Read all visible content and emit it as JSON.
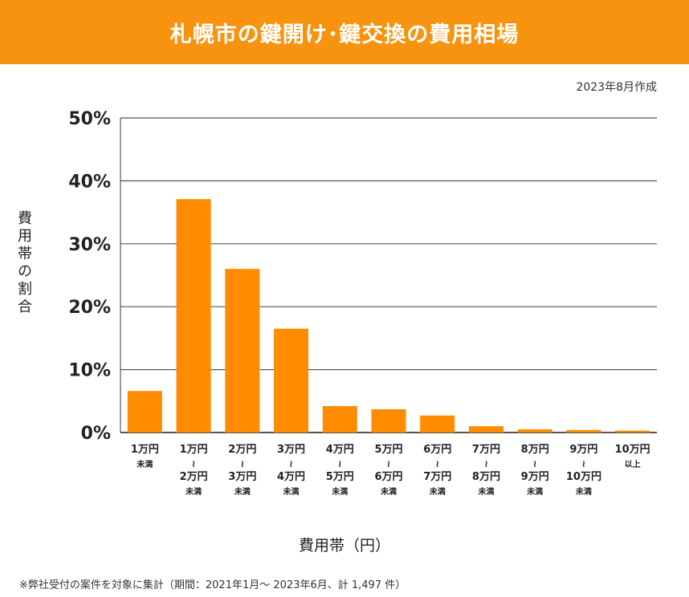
{
  "header": {
    "title": "札幌市の鍵開け･鍵交換の費用相場"
  },
  "date_note": "2023年8月作成",
  "footnote": "※弊社受付の案件を対象に集計（期間：2021年1月～ 2023年6月、計 1,497 件）",
  "colors": {
    "banner": "#f7930f",
    "bar": "#ff8c00",
    "grid": "#555555"
  },
  "chart_data": {
    "type": "bar",
    "title": "札幌市の鍵開け･鍵交換の費用相場",
    "xlabel": "費用帯（円）",
    "ylabel": "費用帯の割合",
    "ylim": [
      0,
      50
    ],
    "yticks": [
      0,
      10,
      20,
      30,
      40,
      50
    ],
    "ytick_labels": [
      "0%",
      "10%",
      "20%",
      "30%",
      "40%",
      "50%"
    ],
    "grid": true,
    "categories": [
      {
        "lines": [
          "1万円",
          "未満"
        ]
      },
      {
        "lines": [
          "1万円",
          "～",
          "2万円",
          "未満"
        ]
      },
      {
        "lines": [
          "2万円",
          "～",
          "3万円",
          "未満"
        ]
      },
      {
        "lines": [
          "3万円",
          "～",
          "4万円",
          "未満"
        ]
      },
      {
        "lines": [
          "4万円",
          "～",
          "5万円",
          "未満"
        ]
      },
      {
        "lines": [
          "5万円",
          "～",
          "6万円",
          "未満"
        ]
      },
      {
        "lines": [
          "6万円",
          "～",
          "7万円",
          "未満"
        ]
      },
      {
        "lines": [
          "7万円",
          "～",
          "8万円",
          "未満"
        ]
      },
      {
        "lines": [
          "8万円",
          "～",
          "9万円",
          "未満"
        ]
      },
      {
        "lines": [
          "9万円",
          "～",
          "10万円",
          "未満"
        ]
      },
      {
        "lines": [
          "10万円",
          "以上"
        ]
      }
    ],
    "values": [
      6.6,
      37.1,
      26.0,
      16.5,
      4.2,
      3.7,
      2.7,
      1.0,
      0.5,
      0.4,
      0.3
    ]
  }
}
